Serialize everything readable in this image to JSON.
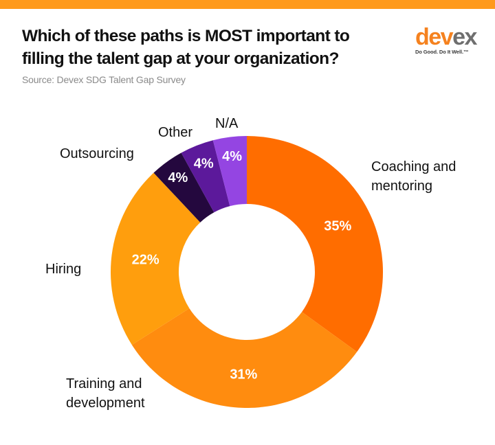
{
  "header": {
    "title": "Which of these paths is MOST important to filling the talent gap at your organization?",
    "source": "Source: Devex SDG Talent Gap Survey"
  },
  "logo": {
    "word_part1": "dev",
    "word_part2": "ex",
    "tagline": "Do Good. Do It Well.™"
  },
  "colors": {
    "top_bar": "#ff9a1c",
    "coaching": "#ff6d00",
    "training": "#ff8c0f",
    "hiring": "#ff9e0d",
    "outsourcing": "#24083e",
    "other": "#5c199b",
    "na": "#9445e2"
  },
  "chart_data": {
    "type": "pie",
    "subtype": "donut",
    "title": "Which of these paths is MOST important to filling the talent gap at your organization?",
    "source": "Source: Devex SDG Talent Gap Survey",
    "unit": "%",
    "slices": [
      {
        "label": "Coaching and mentoring",
        "lines": [
          "Coaching and",
          "mentoring"
        ],
        "value": 35,
        "display": "35%"
      },
      {
        "label": "Training and development",
        "lines": [
          "Training and",
          "development"
        ],
        "value": 31,
        "display": "31%"
      },
      {
        "label": "Hiring",
        "lines": [
          "Hiring"
        ],
        "value": 22,
        "display": "22%"
      },
      {
        "label": "Outsourcing",
        "lines": [
          "Outsourcing"
        ],
        "value": 4,
        "display": "4%"
      },
      {
        "label": "Other",
        "lines": [
          "Other"
        ],
        "value": 4,
        "display": "4%"
      },
      {
        "label": "N/A",
        "lines": [
          "N/A"
        ],
        "value": 4,
        "display": "4%"
      }
    ]
  }
}
